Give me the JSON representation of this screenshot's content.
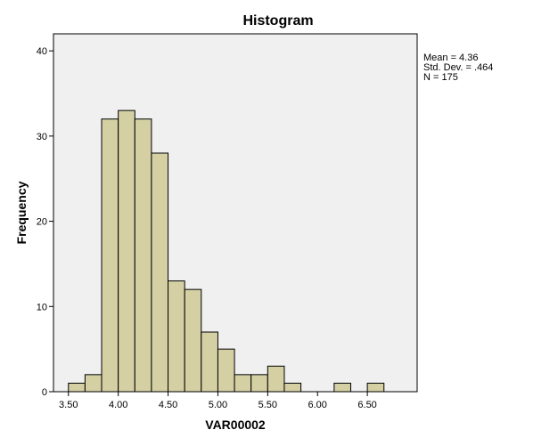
{
  "chart_data": {
    "type": "bar",
    "title": "Histogram",
    "xlabel": "VAR00002",
    "ylabel": "Frequency",
    "bin_width": 0.1667,
    "bins": [
      {
        "x0": 3.5,
        "x1": 3.6667,
        "count": 1
      },
      {
        "x0": 3.6667,
        "x1": 3.8333,
        "count": 2
      },
      {
        "x0": 3.8333,
        "x1": 4.0,
        "count": 32
      },
      {
        "x0": 4.0,
        "x1": 4.1667,
        "count": 33
      },
      {
        "x0": 4.1667,
        "x1": 4.3333,
        "count": 32
      },
      {
        "x0": 4.3333,
        "x1": 4.5,
        "count": 28
      },
      {
        "x0": 4.5,
        "x1": 4.6667,
        "count": 13
      },
      {
        "x0": 4.6667,
        "x1": 4.8333,
        "count": 12
      },
      {
        "x0": 4.8333,
        "x1": 5.0,
        "count": 7
      },
      {
        "x0": 5.0,
        "x1": 5.1667,
        "count": 5
      },
      {
        "x0": 5.1667,
        "x1": 5.3333,
        "count": 2
      },
      {
        "x0": 5.3333,
        "x1": 5.5,
        "count": 2
      },
      {
        "x0": 5.5,
        "x1": 5.6667,
        "count": 3
      },
      {
        "x0": 5.6667,
        "x1": 5.8333,
        "count": 1
      },
      {
        "x0": 6.1667,
        "x1": 6.3333,
        "count": 1
      },
      {
        "x0": 6.5,
        "x1": 6.6667,
        "count": 1
      }
    ],
    "xlim": [
      3.35,
      7.0
    ],
    "ylim": [
      0,
      42
    ],
    "x_ticks": [
      3.5,
      4.0,
      4.5,
      5.0,
      5.5,
      6.0,
      6.5
    ],
    "x_tick_labels": [
      "3.50",
      "4.00",
      "4.50",
      "5.00",
      "5.50",
      "6.00",
      "6.50"
    ],
    "y_ticks": [
      0,
      10,
      20,
      30,
      40
    ],
    "y_tick_labels": [
      "0",
      "10",
      "20",
      "30",
      "40"
    ],
    "grid": false,
    "legend_placement": "top-right",
    "stats": [
      "Mean = 4.36",
      "Std. Dev. = .464",
      "N = 175"
    ],
    "colors": {
      "bar_fill": "#d4d0a4",
      "bar_stroke": "#000000",
      "plot_background": "#f0f0f0"
    }
  }
}
